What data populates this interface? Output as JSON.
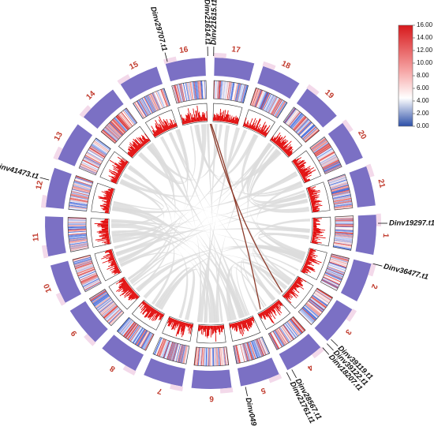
{
  "chromosomes": [
    "1",
    "2",
    "3",
    "4",
    "5",
    "6",
    "7",
    "8",
    "9",
    "10",
    "11",
    "12",
    "13",
    "14",
    "15",
    "16",
    "17",
    "18",
    "19",
    "20",
    "21"
  ],
  "genes": [
    {
      "label": "Dinv19297.t1",
      "chr": "1",
      "angle": 90
    },
    {
      "label": "Dinv36477.t1",
      "chr": "1",
      "angle": 104
    },
    {
      "label": "Dinv39119.t1",
      "chr": "3",
      "angle": 134
    },
    {
      "label": "Dinv39122.t1",
      "chr": "3",
      "angle": 136
    },
    {
      "label": "Dinv18207.t1",
      "chr": "3",
      "angle": 138
    },
    {
      "label": "Dinv28567.t1",
      "chr": "4",
      "angle": 151
    },
    {
      "label": "Dinv21761.t1",
      "chr": "4",
      "angle": 153
    },
    {
      "label": "Dinv04967.t1",
      "chr": "5",
      "angle": 168
    },
    {
      "label": "Dinv41473.t1",
      "chr": "13",
      "angle": 285
    },
    {
      "label": "Dinv29707.t1",
      "chr": "16",
      "angle": 345
    },
    {
      "label": "Dinv21614.t1",
      "chr": "17",
      "angle": 359
    },
    {
      "label": "Dinv21615.t1",
      "chr": "17",
      "angle": 1
    }
  ],
  "highlight_links": [
    {
      "from_chr": "17",
      "to_chr": "3"
    },
    {
      "from_chr": "17",
      "to_chr": "4"
    }
  ],
  "legend": {
    "ticks": [
      "16.00",
      "14.00",
      "12.00",
      "10.00",
      "8.00",
      "6.00",
      "4.00",
      "2.00",
      "0.00"
    ],
    "min": 0,
    "max": 16
  },
  "colors": {
    "chromosome": "#7b70c4",
    "link": "#dcdcdc",
    "highlight_link": "#8b3a2a",
    "histogram": "#e00000",
    "label": "#c0392b",
    "legend_high": "#d7191c",
    "legend_mid": "#ffffff",
    "legend_low": "#2c4fa8"
  }
}
